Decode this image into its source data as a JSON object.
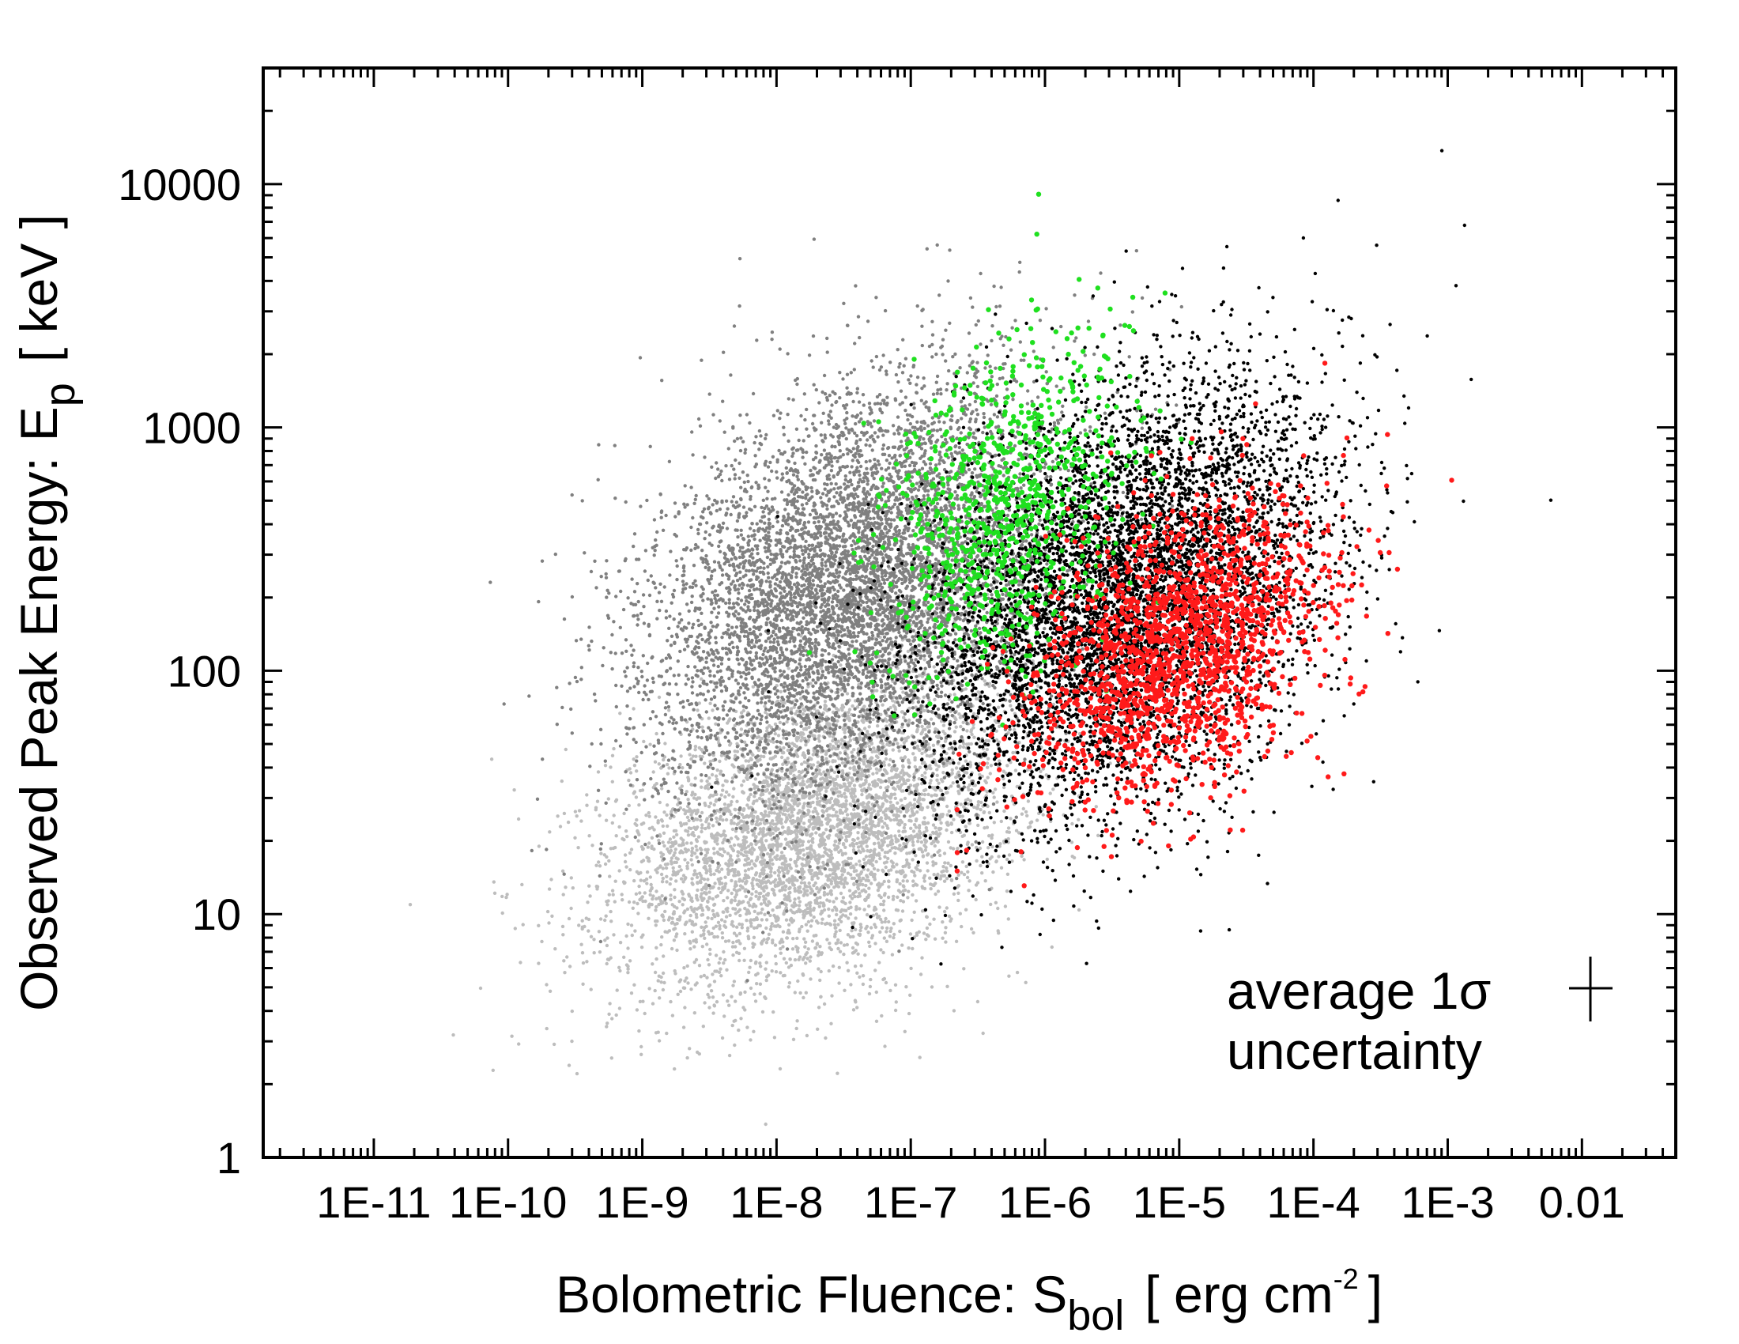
{
  "chart_data": {
    "type": "scatter",
    "title": "",
    "xlabel": {
      "main": "Bolometric Fluence:",
      "symbol": "S",
      "subscript": "bol",
      "unit_open": "[ erg cm",
      "unit_sup": "-2",
      "unit_close": "]"
    },
    "ylabel": {
      "main": "Observed Peak Energy:",
      "symbol": "E",
      "subscript": "p",
      "unit": "[ keV ]"
    },
    "x_scale": "log",
    "y_scale": "log",
    "xlim": [
      1.5e-12,
      0.05
    ],
    "ylim": [
      1,
      30000
    ],
    "x_ticks": [
      {
        "value": 1e-11,
        "label": "1E-11"
      },
      {
        "value": 1e-10,
        "label": "1E-10"
      },
      {
        "value": 1e-09,
        "label": "1E-9"
      },
      {
        "value": 1e-08,
        "label": "1E-8"
      },
      {
        "value": 1e-07,
        "label": "1E-7"
      },
      {
        "value": 1e-06,
        "label": "1E-6"
      },
      {
        "value": 1e-05,
        "label": "1E-5"
      },
      {
        "value": 0.0001,
        "label": "1E-4"
      },
      {
        "value": 0.001,
        "label": "1E-3"
      },
      {
        "value": 0.01,
        "label": "0.01"
      }
    ],
    "y_ticks": [
      {
        "value": 1,
        "label": "1"
      },
      {
        "value": 10,
        "label": "10"
      },
      {
        "value": 100,
        "label": "100"
      },
      {
        "value": 1000,
        "label": "1000"
      },
      {
        "value": 10000,
        "label": "10000"
      }
    ],
    "grid": false,
    "series": [
      {
        "name": "light-grey population",
        "color": "#bdbdbd",
        "center_log_x": -7.7,
        "center_log_y": 1.35,
        "spread_log_x": 0.75,
        "spread_log_y": 0.32,
        "correlation": 0.35,
        "count": 5000
      },
      {
        "name": "dark-grey population",
        "color": "#808080",
        "center_log_x": -7.4,
        "center_log_y": 2.35,
        "spread_log_x": 0.75,
        "spread_log_y": 0.42,
        "correlation": 0.35,
        "count": 7000
      },
      {
        "name": "black population",
        "color": "#000000",
        "center_log_x": -5.4,
        "center_log_y": 2.3,
        "spread_log_x": 0.75,
        "spread_log_y": 0.45,
        "correlation": 0.35,
        "count": 6500
      },
      {
        "name": "green population",
        "color": "#1fe01f",
        "center_log_x": -6.3,
        "center_log_y": 2.65,
        "spread_log_x": 0.45,
        "spread_log_y": 0.35,
        "correlation": 0.3,
        "count": 900
      },
      {
        "name": "red population",
        "color": "#ff1a1a",
        "center_log_x": -5.0,
        "center_log_y": 2.1,
        "spread_log_x": 0.55,
        "spread_log_y": 0.3,
        "correlation": 0.4,
        "count": 1800
      }
    ],
    "annotation": {
      "line1": "average 1",
      "sigma": "σ",
      "line2": "uncertainty",
      "marker": "cross"
    }
  }
}
